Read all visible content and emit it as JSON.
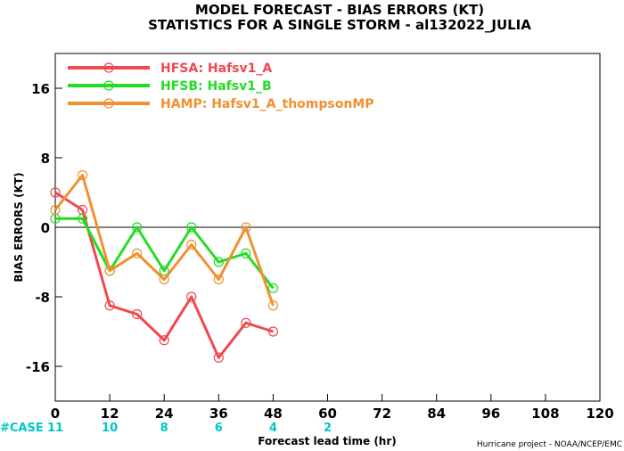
{
  "chart_data": {
    "type": "line",
    "title": "MODEL FORECAST - BIAS ERRORS (KT)",
    "subtitle": "STATISTICS FOR A SINGLE STORM - al132022_JULIA",
    "xlabel": "Forecast lead time (hr)",
    "ylabel": "BIAS ERRORS (KT)",
    "xlim": [
      0,
      120
    ],
    "ylim": [
      -20,
      20
    ],
    "x_ticks": [
      "0",
      "12",
      "24",
      "36",
      "48",
      "60",
      "72",
      "84",
      "96",
      "108",
      "120"
    ],
    "y_ticks": [
      "-16",
      "-8",
      "0",
      "8",
      "16"
    ],
    "case_label": "#CASE",
    "case_counts": [
      {
        "x": 0,
        "label": "11"
      },
      {
        "x": 12,
        "label": "10"
      },
      {
        "x": 24,
        "label": "8"
      },
      {
        "x": 36,
        "label": "6"
      },
      {
        "x": 48,
        "label": "4"
      },
      {
        "x": 60,
        "label": "2"
      }
    ],
    "credit": "Hurricane project - NOAA/NCEP/EMC",
    "series": [
      {
        "name": "HFSA: Hafsv1_A",
        "color": "#f0484f",
        "x": [
          0,
          6,
          12,
          18,
          24,
          30,
          36,
          42,
          48
        ],
        "y": [
          4,
          2,
          -9,
          -10,
          -13,
          -8,
          -15,
          -11,
          -12
        ]
      },
      {
        "name": "HFSB: Hafsv1_B",
        "color": "#22dd22",
        "x": [
          0,
          6,
          12,
          18,
          24,
          30,
          36,
          42,
          48
        ],
        "y": [
          1,
          1,
          -5,
          0,
          -5,
          0,
          -4,
          -3,
          -7
        ]
      },
      {
        "name": "HAMP: Hafsv1_A_thompsonMP",
        "color": "#f0902f",
        "x": [
          0,
          6,
          12,
          18,
          24,
          30,
          36,
          42,
          48
        ],
        "y": [
          2,
          6,
          -5,
          -3,
          -6,
          -2,
          -6,
          0,
          -9
        ]
      }
    ]
  }
}
